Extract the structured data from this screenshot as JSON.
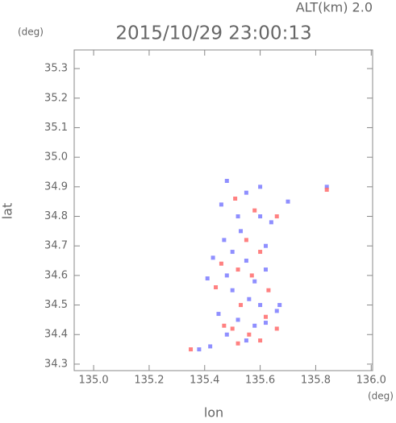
{
  "chart_data": {
    "type": "scatter",
    "annotation": "ALT(km) 2.0",
    "title": "2015/10/29 23:00:13",
    "x_label": "lon",
    "y_label": "lat",
    "x_unit": "(deg)",
    "y_unit": "(deg)",
    "xlim": [
      134.93,
      136.005
    ],
    "ylim": [
      34.278,
      35.363
    ],
    "xticks": [
      {
        "value": 135,
        "label": "135.0"
      },
      135.2,
      135.4,
      135.6,
      135.8,
      {
        "value": 136,
        "label": "136.0"
      }
    ],
    "yticks": [
      34.3,
      34.4,
      34.5,
      34.6,
      34.7,
      34.8,
      34.9,
      {
        "value": 35,
        "label": "35.0"
      },
      35.1,
      35.2,
      35.3
    ],
    "series": [
      {
        "color": "#7b7bff",
        "x": [
          135.48,
          135.55,
          135.6,
          135.46,
          135.52,
          135.6,
          135.64,
          135.7,
          135.84,
          135.47,
          135.5,
          135.55,
          135.62,
          135.43,
          135.48,
          135.58,
          135.62,
          135.5,
          135.56,
          135.6,
          135.66,
          135.45,
          135.52,
          135.58,
          135.62,
          135.48,
          135.55,
          135.42,
          135.38,
          135.67,
          135.53,
          135.41
        ],
        "values": [
          34.92,
          34.88,
          34.9,
          34.84,
          34.8,
          34.8,
          34.78,
          34.85,
          34.9,
          34.72,
          34.68,
          34.65,
          34.7,
          34.66,
          34.6,
          34.58,
          34.62,
          34.55,
          34.52,
          34.5,
          34.48,
          34.47,
          34.45,
          34.43,
          34.44,
          34.4,
          34.38,
          34.36,
          34.35,
          34.5,
          34.75,
          34.59
        ]
      },
      {
        "color": "#ff6b6b",
        "x": [
          135.51,
          135.58,
          135.66,
          135.84,
          135.55,
          135.6,
          135.52,
          135.57,
          135.46,
          135.63,
          135.53,
          135.62,
          135.66,
          135.5,
          135.56,
          135.47,
          135.6,
          135.35,
          135.52,
          135.44
        ],
        "values": [
          34.86,
          34.82,
          34.8,
          34.89,
          34.72,
          34.68,
          34.62,
          34.6,
          34.64,
          34.55,
          34.5,
          34.46,
          34.42,
          34.42,
          34.4,
          34.43,
          34.38,
          34.35,
          34.37,
          34.56
        ]
      }
    ]
  }
}
